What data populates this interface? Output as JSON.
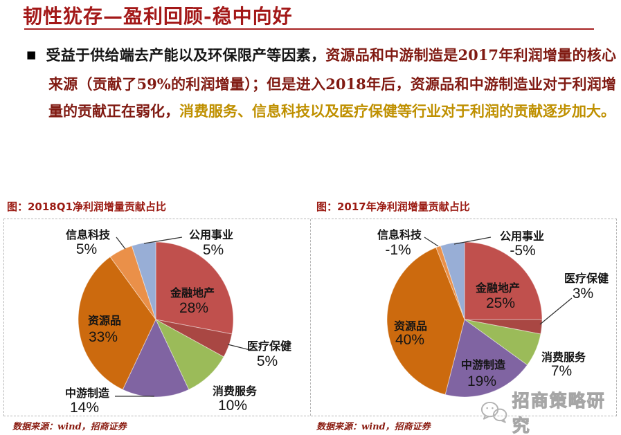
{
  "header": {
    "title": "韧性犹存—盈利回顾-稳中向好"
  },
  "paragraph": {
    "bullet": "■",
    "part1": "受益于供给端去产能以及环保限产等因素，",
    "part2": "资源品和中游制造是2017年利润增量的核心来源（贡献了59%的利润增量）；但是进入2018年后，资源品和中游制造业对于利润增量的贡献正在弱化，",
    "part3": "消费服务、信息科技以及医疗保健等行业对于利润的贡献逐步加大。"
  },
  "watermark": {
    "text": "招商策略研究",
    "icon": "wechat-bubbles-icon"
  },
  "colors": {
    "title_red": "#A31818",
    "body_red": "#801A12",
    "gold": "#BF9000",
    "chart_title_red": "#9B1B13"
  },
  "chart_data": [
    {
      "type": "pie",
      "title": "图：2018Q1净利润增量贡献占比",
      "categories": [
        "金融地产",
        "医疗保健",
        "消费服务",
        "中游制造",
        "资源品",
        "信息科技",
        "公用事业"
      ],
      "values": [
        28,
        5,
        10,
        14,
        33,
        5,
        5
      ],
      "labels": [
        "28%",
        "5%",
        "10%",
        "14%",
        "33%",
        "5%",
        "5%"
      ],
      "colors": [
        "#C0504D",
        "#A94743",
        "#9BBB59",
        "#8064A2",
        "#CC6A0E",
        "#EA9049",
        "#98AED6"
      ],
      "legend": "none",
      "start_angle_deg": 0,
      "direction": "clockwise",
      "source": "数据来源：wind，招商证券"
    },
    {
      "type": "pie",
      "title": "图：2017年净利润增量贡献占比",
      "categories": [
        "金融地产",
        "医疗保健",
        "消费服务",
        "中游制造",
        "资源品",
        "信息科技",
        "公用事业"
      ],
      "values": [
        25,
        3,
        7,
        19,
        40,
        -1,
        -5
      ],
      "labels": [
        "25%",
        "3%",
        "7%",
        "19%",
        "40%",
        "-1%",
        "-5%"
      ],
      "colors": [
        "#C0504D",
        "#A94743",
        "#9BBB59",
        "#8064A2",
        "#CC6A0E",
        "#EA9049",
        "#98AED6"
      ],
      "legend": "none",
      "start_angle_deg": 0,
      "direction": "clockwise",
      "note": "negative slices drawn with absolute size",
      "source": "数据来源：wind，招商证券"
    }
  ]
}
